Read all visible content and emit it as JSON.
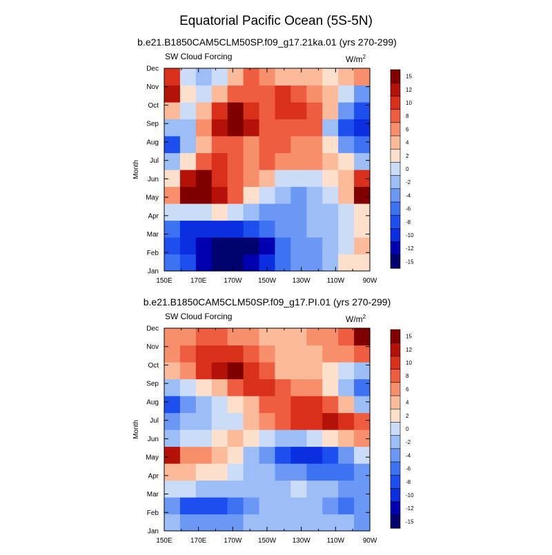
{
  "figure": {
    "title": "Equatorial Pacific Ocean (5S-5N)"
  },
  "chart_data": [
    {
      "type": "heatmap",
      "title": "b.e21.B1850CAM5CLM50SP.f09_g17.21ka.01 (yrs 270-299)",
      "subtitle": "SW Cloud Forcing",
      "units_base": "W/m",
      "units_exp": "2",
      "xlabel": "",
      "ylabel": "Month",
      "x_ticks": [
        "150E",
        "170E",
        "170W",
        "150W",
        "130W",
        "110W",
        "90W"
      ],
      "x_values": [
        150,
        160,
        170,
        180,
        190,
        200,
        210,
        220,
        230,
        240,
        250,
        260,
        270
      ],
      "y_ticks": [
        "Jan",
        "Feb",
        "Mar",
        "Apr",
        "May",
        "Jun",
        "Jul",
        "Aug",
        "Sep",
        "Oct",
        "Nov",
        "Dec"
      ],
      "colorbar_ticks": [
        "15",
        "12",
        "10",
        "8",
        "6",
        "4",
        "2",
        "0",
        "-2",
        "-4",
        "-6",
        "-8",
        "-10",
        "-12",
        "-15"
      ],
      "z": [
        [
          -8,
          -10,
          -14,
          -16,
          -16,
          -15,
          -11,
          -7,
          -6,
          -5,
          -3,
          0,
          1
        ],
        [
          -10,
          -12,
          -14,
          -16,
          -16,
          -16,
          -13,
          -8,
          -6,
          -5,
          -3,
          -1,
          2
        ],
        [
          -8,
          -11,
          -12,
          -12,
          -11,
          -10,
          -8,
          -6,
          -5,
          -4,
          -3,
          -1,
          1
        ],
        [
          -2,
          -1,
          -1,
          0,
          -1,
          -3,
          -5,
          -6,
          -5,
          -4,
          -3,
          -1,
          0
        ],
        [
          4,
          13,
          12,
          10,
          6,
          1,
          -2,
          -4,
          -5,
          -3,
          -1,
          2,
          12
        ],
        [
          1,
          10,
          12,
          9,
          7,
          5,
          2,
          -1,
          -2,
          -1,
          0,
          3,
          8
        ],
        [
          -4,
          1,
          6,
          8,
          6,
          5,
          6,
          5,
          4,
          4,
          2,
          0,
          -3
        ],
        [
          -10,
          -4,
          2,
          6,
          6,
          5,
          6,
          6,
          5,
          5,
          1,
          -6,
          -8
        ],
        [
          -4,
          -3,
          4,
          10,
          13,
          10,
          7,
          7,
          6,
          6,
          -4,
          -10,
          -12
        ],
        [
          2,
          -2,
          2,
          8,
          12,
          8,
          6,
          8,
          8,
          6,
          2,
          -6,
          -10
        ],
        [
          10,
          0,
          -2,
          2,
          6,
          7,
          6,
          8,
          7,
          5,
          2,
          -2,
          -6
        ],
        [
          8,
          -1,
          -4,
          -2,
          2,
          6,
          5,
          3,
          2,
          2,
          1,
          2,
          4
        ]
      ]
    },
    {
      "type": "heatmap",
      "title": "b.e21.B1850CAM5CLM50SP.f09_g17.PI.01 (yrs 270-299)",
      "subtitle": "SW Cloud Forcing",
      "units_base": "W/m",
      "units_exp": "2",
      "xlabel": "",
      "ylabel": "Month",
      "x_ticks": [
        "150E",
        "170E",
        "170W",
        "150W",
        "130W",
        "110W",
        "90W"
      ],
      "x_values": [
        150,
        160,
        170,
        180,
        190,
        200,
        210,
        220,
        230,
        240,
        250,
        260,
        270
      ],
      "y_ticks": [
        "Jan",
        "Feb",
        "Mar",
        "Apr",
        "May",
        "Jun",
        "Jul",
        "Aug",
        "Sep",
        "Oct",
        "Nov",
        "Dec"
      ],
      "colorbar_ticks": [
        "15",
        "12",
        "10",
        "8",
        "6",
        "4",
        "2",
        "0",
        "-2",
        "-4",
        "-6",
        "-8",
        "-10",
        "-12",
        "-15"
      ],
      "z": [
        [
          -4,
          -6,
          -6,
          -6,
          -6,
          -4,
          -3,
          -3,
          -3,
          -3,
          -3,
          -4,
          -5
        ],
        [
          -6,
          -10,
          -10,
          -9,
          -8,
          -5,
          -3,
          -3,
          -3,
          -4,
          -5,
          -8,
          -6
        ],
        [
          -1,
          -2,
          -4,
          -4,
          -4,
          -3,
          -3,
          -3,
          -2,
          -3,
          -4,
          -6,
          -5
        ],
        [
          2,
          2,
          1,
          0,
          -2,
          -3,
          -4,
          -5,
          -6,
          -8,
          -8,
          -8,
          -6
        ],
        [
          10,
          5,
          4,
          3,
          0,
          -3,
          -6,
          -10,
          -12,
          -11,
          -9,
          -5,
          -2
        ],
        [
          -3,
          -2,
          -1,
          1,
          2,
          1,
          -2,
          -3,
          -3,
          -2,
          0,
          3,
          5
        ],
        [
          -6,
          -4,
          -3,
          -2,
          -1,
          2,
          5,
          6,
          8,
          8,
          10,
          9,
          6
        ],
        [
          -9,
          -6,
          -4,
          -2,
          0,
          3,
          6,
          7,
          8,
          8,
          6,
          2,
          -3
        ],
        [
          -3,
          -2,
          0,
          3,
          6,
          8,
          8,
          6,
          5,
          4,
          1,
          -4,
          -8
        ],
        [
          2,
          4,
          8,
          11,
          12,
          9,
          6,
          3,
          2,
          2,
          1,
          -1,
          -4
        ],
        [
          4,
          6,
          8,
          9,
          8,
          6,
          4,
          2,
          2,
          3,
          4,
          4,
          6
        ],
        [
          4,
          5,
          6,
          6,
          5,
          4,
          3,
          3,
          3,
          4,
          4,
          6,
          12
        ]
      ]
    }
  ]
}
